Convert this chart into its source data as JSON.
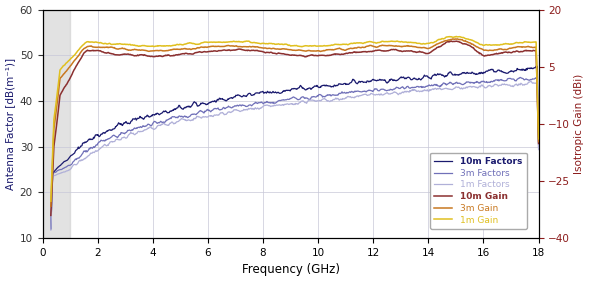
{
  "xlabel": "Frequency (GHz)",
  "ylabel_left": "Antenna Factor [dB(m⁻¹)]",
  "ylabel_right": "Isotropic Gain (dBi)",
  "xlim": [
    0,
    18
  ],
  "ylim_left": [
    10,
    60
  ],
  "ylim_right": [
    -40,
    20
  ],
  "yticks_left": [
    10,
    20,
    30,
    40,
    50,
    60
  ],
  "yticks_right": [
    -40,
    -25,
    -10,
    5,
    20
  ],
  "xticks": [
    0,
    2,
    4,
    6,
    8,
    10,
    12,
    14,
    16,
    18
  ],
  "shaded_region": [
    0,
    1
  ],
  "line_colors": {
    "10m_factors": "#1a1a6e",
    "3m_factors": "#7070b8",
    "1m_factors": "#b0b0d8",
    "10m_gain": "#8b3030",
    "3m_gain": "#c87820",
    "1m_gain": "#e0c020"
  },
  "background_color": "#ffffff",
  "grid_color": "#c8c8d8"
}
